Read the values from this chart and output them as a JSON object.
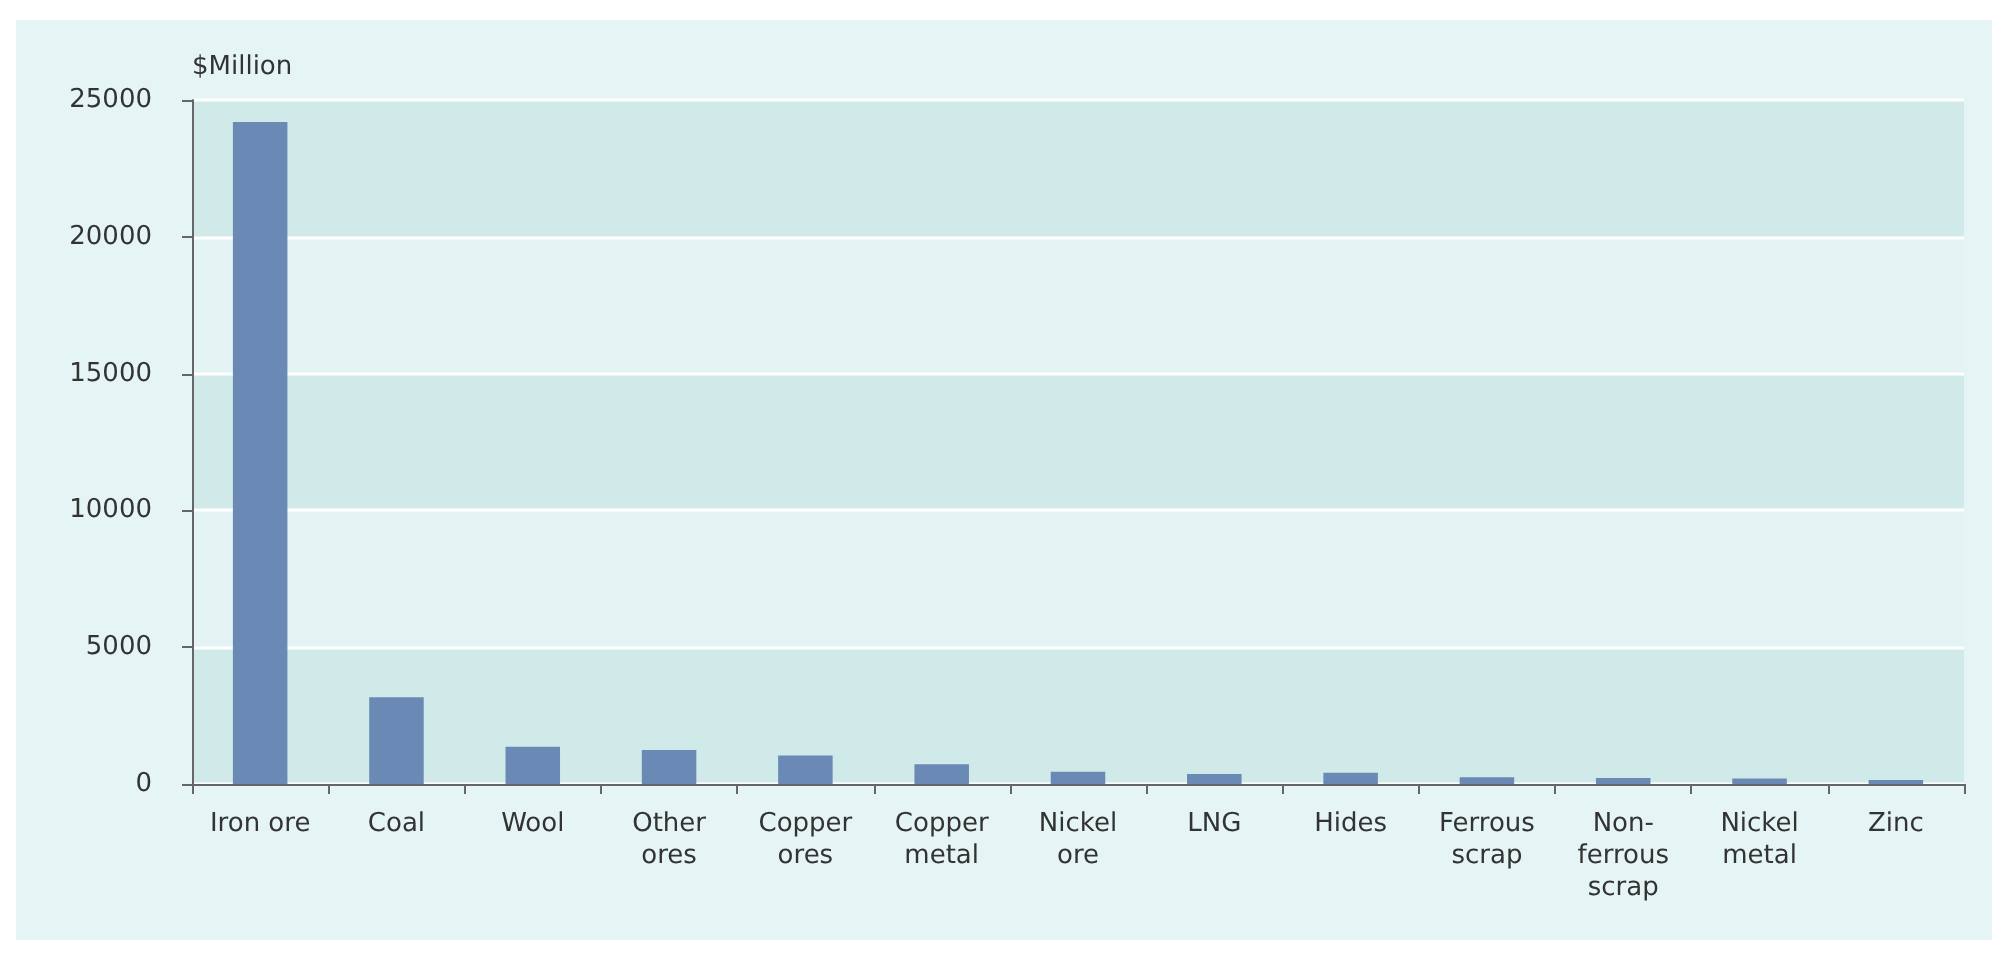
{
  "chart_data": {
    "type": "bar",
    "ylabel": "$Million",
    "categories": [
      "Iron ore",
      "Coal",
      "Wool",
      "Other ores",
      "Copper ores",
      "Copper metal",
      "Nickel ore",
      "LNG",
      "Hides",
      "Ferrous scrap",
      "Non-ferrous scrap",
      "Nickel metal",
      "Zinc"
    ],
    "values": [
      24200,
      3170,
      1360,
      1240,
      1040,
      720,
      450,
      370,
      410,
      250,
      220,
      200,
      150
    ],
    "color": "#6a8ab5",
    "ylim": [
      0,
      25000
    ],
    "yticks": [
      0,
      5000,
      10000,
      15000,
      20000,
      25000
    ],
    "grid": "y"
  }
}
